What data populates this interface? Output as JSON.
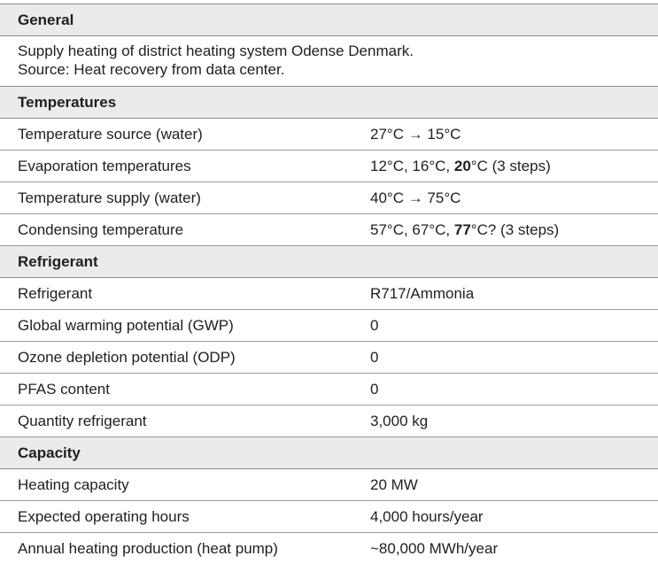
{
  "general": {
    "title": "General",
    "line1": "Supply heating of district heating system Odense Denmark.",
    "line2": "Source: Heat recovery from data center."
  },
  "temperatures": {
    "title": "Temperatures",
    "rows": [
      {
        "label": "Temperature source (water)",
        "value": [
          "27°C → 15°C"
        ]
      },
      {
        "label": "Evaporation temperatures",
        "value": [
          "12°C, 16°C, ",
          "20",
          "°C (3 steps)"
        ]
      },
      {
        "label": "Temperature supply (water)",
        "value": [
          "40°C → 75°C"
        ]
      },
      {
        "label": "Condensing temperature",
        "value": [
          "57°C, 67°C, ",
          "77",
          "°C? (3 steps)"
        ]
      }
    ]
  },
  "refrigerant": {
    "title": "Refrigerant",
    "rows": [
      {
        "label": "Refrigerant",
        "value": "R717/Ammonia"
      },
      {
        "label": "Global warming potential (GWP)",
        "value": "0"
      },
      {
        "label": "Ozone depletion potential (ODP)",
        "value": "0"
      },
      {
        "label": "PFAS content",
        "value": "0"
      },
      {
        "label": "Quantity refrigerant",
        "value": "3,000 kg"
      }
    ]
  },
  "capacity": {
    "title": "Capacity",
    "rows": [
      {
        "label": "Heating capacity",
        "value": "20 MW"
      },
      {
        "label": "Expected operating hours",
        "value": "4,000 hours/year"
      },
      {
        "label": "Annual heating production (heat pump)",
        "value": "~80,000 MWh/year"
      }
    ]
  }
}
